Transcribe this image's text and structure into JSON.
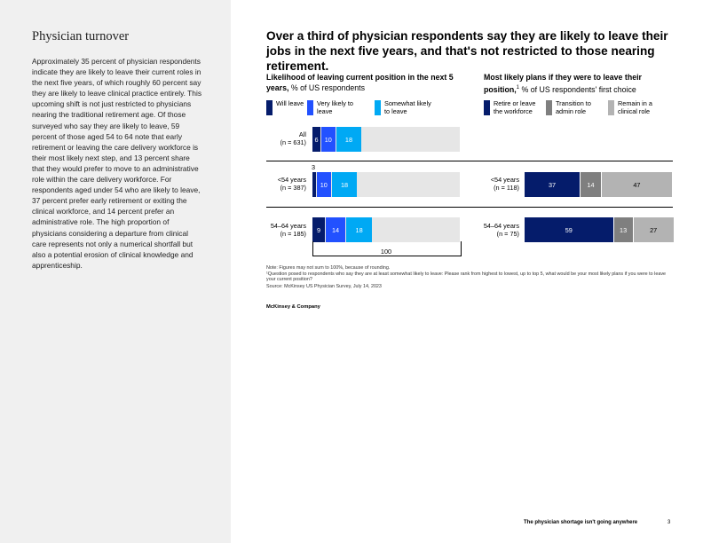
{
  "sidebar": {
    "title": "Physician turnover",
    "body": "Approximately 35 percent of physician respondents indicate they are likely to leave their current roles in the next five years, of which roughly 60 percent say they are likely to leave clinical practice entirely. This upcoming shift is not just restricted to physicians nearing the traditional retirement age. Of those surveyed who say they are likely to leave, 59 percent of those aged 54 to 64 note that early retirement or leaving the care delivery workforce is their most likely next step, and 13 percent share that they would prefer to move to an administrative role within the care delivery workforce. For respondents aged under 54 who are likely to leave, 37 percent prefer early retirement or exiting the clinical workforce, and 14 percent prefer an administrative role. The high proportion of physicians considering a departure from clinical care represents not only a numerical shortfall but also a potential erosion of clinical knowledge and apprenticeship."
  },
  "headline": "Over a third of physician respondents say they are likely to leave their jobs in the next five years, and that's not restricted to those nearing retirement.",
  "left_chart": {
    "subtitle_bold": "Likelihood of leaving current position in the next 5 years,",
    "subtitle_rest": " % of US respondents",
    "legend": [
      {
        "label": "Will leave",
        "color": "#051c6b"
      },
      {
        "label": "Very likely to leave",
        "color": "#2251ff"
      },
      {
        "label": "Somewhat likely to leave",
        "color": "#00a9f4"
      }
    ]
  },
  "right_chart": {
    "subtitle_bold": "Most likely plans if they were to leave their position,",
    "subtitle_sup": "1",
    "subtitle_rest": " % of US respondents' first choice",
    "legend": [
      {
        "label": "Retire or leave the workforce",
        "color": "#051c6b"
      },
      {
        "label": "Transition to admin role",
        "color": "#7f7f7f"
      },
      {
        "label": "Remain in a clinical role",
        "color": "#b3b3b3"
      }
    ]
  },
  "chart_data": [
    {
      "type": "bar",
      "orientation": "horizontal-stacked",
      "title": "Likelihood of leaving current position in the next 5 years, % of US respondents",
      "categories": [
        "All (n = 631)",
        "<54 years (n = 387)",
        "54–64 years (n = 185)"
      ],
      "series": [
        {
          "name": "Will leave",
          "values": [
            6,
            3,
            9
          ]
        },
        {
          "name": "Very likely to leave",
          "values": [
            10,
            10,
            14
          ]
        },
        {
          "name": "Somewhat likely to leave",
          "values": [
            18,
            18,
            18
          ]
        }
      ],
      "total": 100,
      "total_label": "100",
      "outside_labels": {
        "<54 years (n = 387)": "3"
      }
    },
    {
      "type": "bar",
      "orientation": "horizontal-stacked",
      "title": "Most likely plans if they were to leave their position, % of US respondents' first choice",
      "categories": [
        "<54 years (n = 118)",
        "54–64 years (n = 75)"
      ],
      "series": [
        {
          "name": "Retire or leave the workforce",
          "values": [
            37,
            59
          ]
        },
        {
          "name": "Transition to admin role",
          "values": [
            14,
            13
          ]
        },
        {
          "name": "Remain in a clinical role",
          "values": [
            47,
            27
          ]
        }
      ]
    }
  ],
  "row_labels_left": [
    {
      "line1": "All",
      "line2": "(n = 631)"
    },
    {
      "line1": "<54 years",
      "line2": "(n = 387)"
    },
    {
      "line1": "54–64 years",
      "line2": "(n = 185)"
    }
  ],
  "row_labels_right": [
    {
      "line1": "<54 years",
      "line2": "(n = 118)"
    },
    {
      "line1": "54–64 years",
      "line2": "(n = 75)"
    }
  ],
  "notes": {
    "line1": "Note: Figures may not sum to 100%, because of rounding.",
    "line2": "¹Question posed to respondents who say they are at least somewhat likely to leave: Please rank from highest to lowest, up to top 5, what would be your most likely plans if you were to leave your current position?",
    "line3": "Source: McKinsey US Physician Survey, July 14, 2023"
  },
  "brand": "McKinsey & Company",
  "footer": {
    "text": "The physician shortage isn't going anywhere",
    "page": "3"
  }
}
